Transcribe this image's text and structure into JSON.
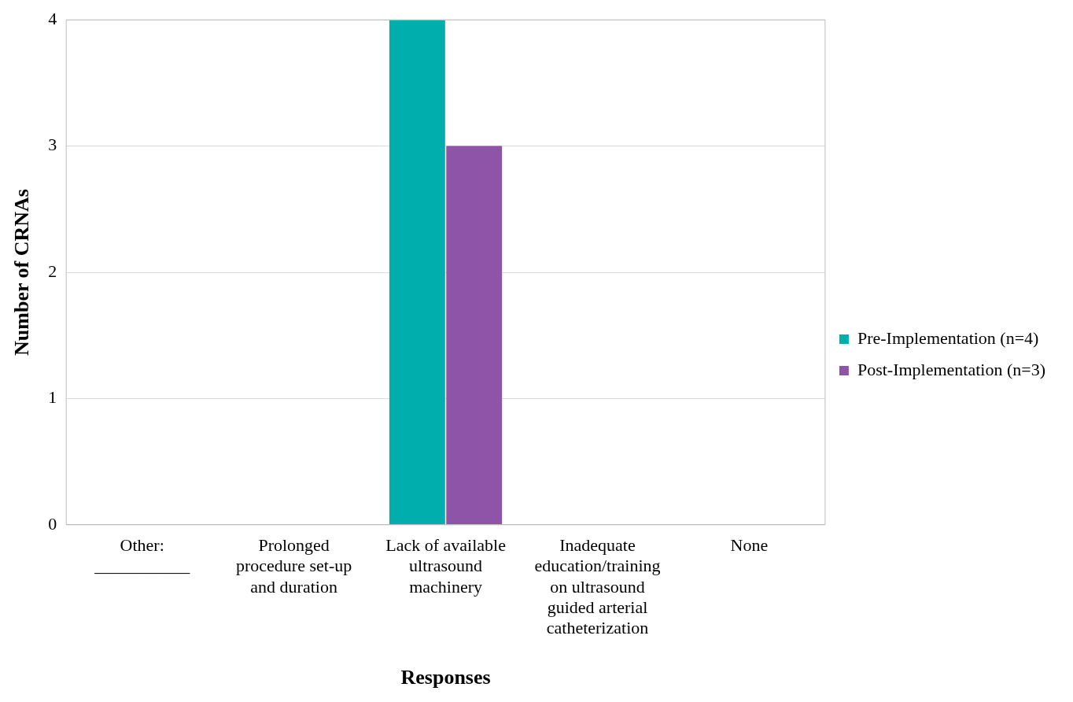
{
  "chart_data": {
    "type": "bar",
    "xlabel": "Responses",
    "ylabel": "Number of CRNAs",
    "categories": [
      "Other: ___________",
      "Prolonged procedure set-up and duration",
      "Lack of available ultrasound machinery",
      "Inadequate education/training on ultrasound guided arterial catheterization",
      "None"
    ],
    "series": [
      {
        "name": "Pre-Implementation (n=4)",
        "color": "#00aeae",
        "values": [
          0,
          0,
          4,
          0,
          0
        ]
      },
      {
        "name": "Post-Implementation (n=3)",
        "color": "#8e54a8",
        "values": [
          0,
          0,
          3,
          0,
          0
        ]
      }
    ],
    "ylim": [
      0,
      4
    ],
    "yticks": [
      0,
      1,
      2,
      3,
      4
    ],
    "grid": "y",
    "legend": "right"
  }
}
